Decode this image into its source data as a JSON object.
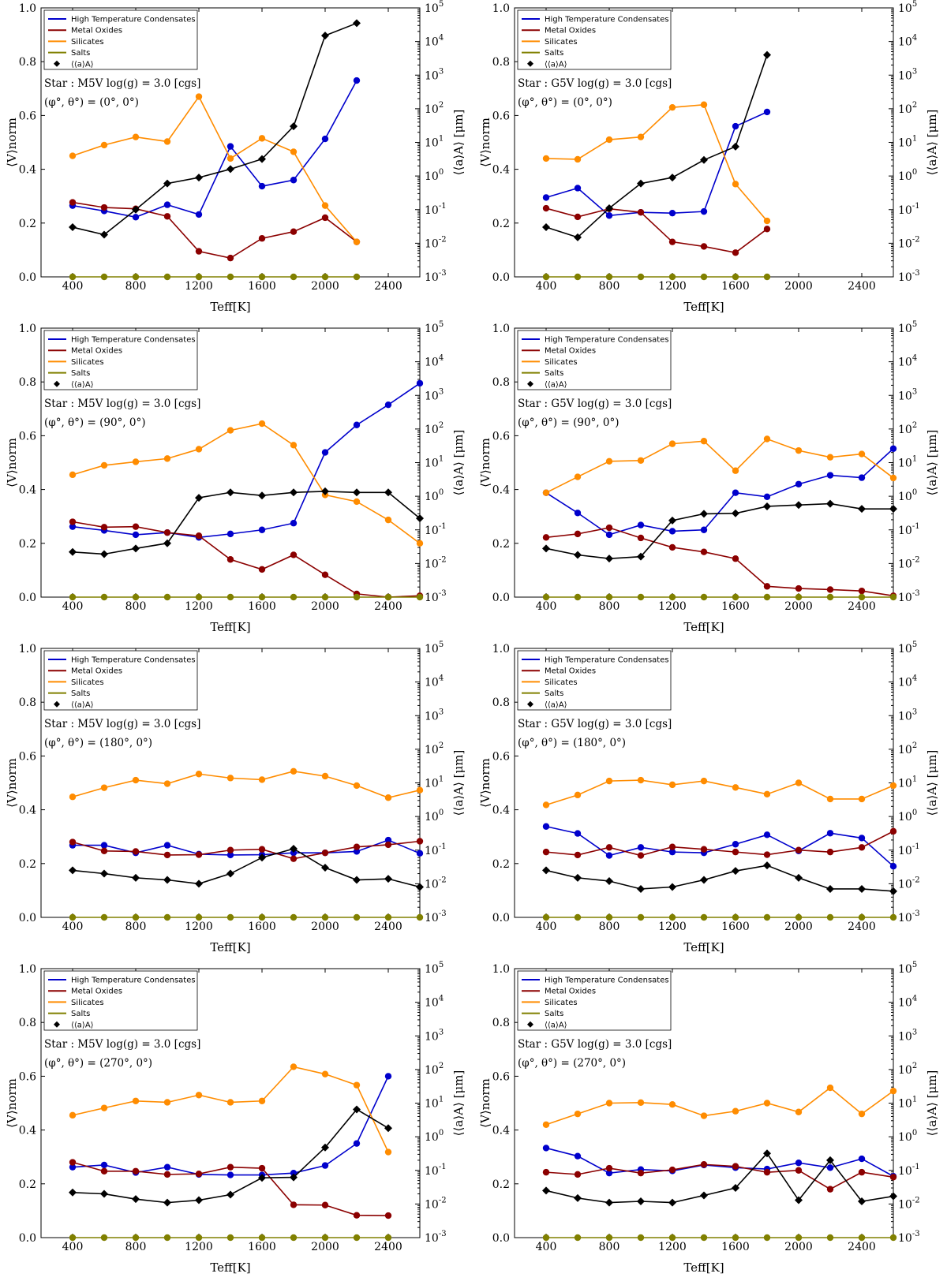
{
  "figure": {
    "colors": {
      "htc": "#0000cc",
      "metal_oxides": "#8b0000",
      "silicates": "#ff8c00",
      "salts": "#808000",
      "grain_size": "#000000"
    },
    "series_names": [
      "High Temperature Condensates",
      "Metal Oxides",
      "Silicates",
      "Salts"
    ],
    "grain_size_label": "⟨⟨a⟩A⟩",
    "xlabel": "Teff[K]",
    "ylabel_left": "⟨V⟩norm",
    "ylabel_right": "⟨⟨a⟩A⟩ [μm]"
  },
  "chart_data": [
    {
      "type": "line",
      "star": "Star : M5V   log(g) = 3.0 [cgs]",
      "angles": "(φ°, θ°) = (0°, 0°)",
      "xlim": [
        200,
        2600
      ],
      "xticks": [
        400,
        800,
        1200,
        1600,
        2000,
        2400
      ],
      "ylim": [
        0,
        1.0
      ],
      "yticks": [
        "0.0",
        "0.2",
        "0.4",
        "0.6",
        "0.8",
        "1.0"
      ],
      "y2lim_log10": [
        -3,
        5
      ],
      "y2ticks": [
        "10-3",
        "10-2",
        "10-1",
        "100",
        "101",
        "102",
        "103",
        "104",
        "105"
      ],
      "x": [
        400,
        600,
        800,
        1000,
        1200,
        1400,
        1600,
        1800,
        2000,
        2200
      ],
      "series": [
        {
          "name": "High Temperature Condensates",
          "values": [
            0.265,
            0.245,
            0.222,
            0.268,
            0.232,
            0.485,
            0.337,
            0.36,
            0.513,
            0.73
          ]
        },
        {
          "name": "Metal Oxides",
          "values": [
            0.277,
            0.258,
            0.253,
            0.225,
            0.095,
            0.07,
            0.143,
            0.168,
            0.22,
            0.13
          ]
        },
        {
          "name": "Silicates",
          "values": [
            0.45,
            0.49,
            0.52,
            0.503,
            0.67,
            0.44,
            0.515,
            0.465,
            0.265,
            0.13
          ]
        },
        {
          "name": "Salts",
          "values": [
            0,
            0,
            0,
            0,
            0,
            0,
            0,
            0,
            0,
            0
          ]
        }
      ],
      "grain_size_um": [
        0.03,
        0.018,
        0.1,
        0.6,
        0.9,
        1.6,
        3.2,
        30,
        15000,
        35000
      ]
    },
    {
      "type": "line",
      "star": "Star : G5V   log(g) = 3.0 [cgs]",
      "angles": "(φ°, θ°) = (0°, 0°)",
      "xlim": [
        200,
        2600
      ],
      "xticks": [
        400,
        800,
        1200,
        1600,
        2000,
        2400
      ],
      "ylim": [
        0,
        1.0
      ],
      "yticks": [
        "0.0",
        "0.2",
        "0.4",
        "0.6",
        "0.8",
        "1.0"
      ],
      "y2lim_log10": [
        -3,
        5
      ],
      "y2ticks": [
        "10-3",
        "10-2",
        "10-1",
        "100",
        "101",
        "102",
        "103",
        "104",
        "105"
      ],
      "x": [
        400,
        600,
        800,
        1000,
        1200,
        1400,
        1600,
        1800
      ],
      "series": [
        {
          "name": "High Temperature Condensates",
          "values": [
            0.295,
            0.33,
            0.228,
            0.24,
            0.237,
            0.243,
            0.56,
            0.613
          ]
        },
        {
          "name": "Metal Oxides",
          "values": [
            0.255,
            0.223,
            0.253,
            0.24,
            0.13,
            0.113,
            0.09,
            0.178
          ]
        },
        {
          "name": "Silicates",
          "values": [
            0.44,
            0.437,
            0.51,
            0.52,
            0.63,
            0.64,
            0.345,
            0.208
          ]
        },
        {
          "name": "Salts",
          "values": [
            0,
            0,
            0,
            0,
            0,
            0,
            0,
            0
          ]
        }
      ],
      "grain_size_um": [
        0.03,
        0.015,
        0.11,
        0.6,
        0.9,
        3.0,
        7.5,
        4000
      ]
    },
    {
      "type": "line",
      "star": "Star : M5V   log(g) = 3.0 [cgs]",
      "angles": "(φ°, θ°) = (90°, 0°)",
      "xlim": [
        200,
        2600
      ],
      "xticks": [
        400,
        800,
        1200,
        1600,
        2000,
        2400
      ],
      "ylim": [
        0,
        1.0
      ],
      "yticks": [
        "0.0",
        "0.2",
        "0.4",
        "0.6",
        "0.8",
        "1.0"
      ],
      "y2lim_log10": [
        -3,
        5
      ],
      "y2ticks": [
        "10-3",
        "10-2",
        "10-1",
        "100",
        "101",
        "102",
        "103",
        "104",
        "105"
      ],
      "x": [
        400,
        600,
        800,
        1000,
        1200,
        1400,
        1600,
        1800,
        2000,
        2200,
        2400,
        2600
      ],
      "series": [
        {
          "name": "High Temperature Condensates",
          "values": [
            0.262,
            0.248,
            0.232,
            0.24,
            0.222,
            0.235,
            0.25,
            0.275,
            0.538,
            0.64,
            0.715,
            0.795
          ]
        },
        {
          "name": "Metal Oxides",
          "values": [
            0.28,
            0.26,
            0.262,
            0.24,
            0.228,
            0.14,
            0.103,
            0.157,
            0.083,
            0.012,
            0.0,
            0.005
          ]
        },
        {
          "name": "Silicates",
          "values": [
            0.455,
            0.49,
            0.503,
            0.515,
            0.55,
            0.62,
            0.645,
            0.565,
            0.38,
            0.355,
            0.287,
            0.2
          ]
        },
        {
          "name": "Salts",
          "values": [
            0,
            0,
            0,
            0,
            0,
            0,
            0,
            0,
            0,
            0,
            0,
            0
          ]
        }
      ],
      "grain_size_um": [
        0.022,
        0.019,
        0.028,
        0.04,
        0.9,
        1.3,
        1.05,
        1.3,
        1.4,
        1.3,
        1.3,
        0.22
      ]
    },
    {
      "type": "line",
      "star": "Star : G5V   log(g) = 3.0 [cgs]",
      "angles": "(φ°, θ°) = (90°, 0°)",
      "xlim": [
        200,
        2600
      ],
      "xticks": [
        400,
        800,
        1200,
        1600,
        2000,
        2400
      ],
      "ylim": [
        0,
        1.0
      ],
      "yticks": [
        "0.0",
        "0.2",
        "0.4",
        "0.6",
        "0.8",
        "1.0"
      ],
      "y2lim_log10": [
        -3,
        5
      ],
      "y2ticks": [
        "10-3",
        "10-2",
        "10-1",
        "100",
        "101",
        "102",
        "103",
        "104",
        "105"
      ],
      "x": [
        400,
        600,
        800,
        1000,
        1200,
        1400,
        1600,
        1800,
        2000,
        2200,
        2400,
        2600
      ],
      "series": [
        {
          "name": "High Temperature Condensates",
          "values": [
            0.388,
            0.313,
            0.232,
            0.268,
            0.245,
            0.25,
            0.388,
            0.373,
            0.42,
            0.453,
            0.444,
            0.552
          ]
        },
        {
          "name": "Metal Oxides",
          "values": [
            0.222,
            0.235,
            0.258,
            0.22,
            0.185,
            0.168,
            0.143,
            0.04,
            0.032,
            0.028,
            0.023,
            0.005
          ]
        },
        {
          "name": "Silicates",
          "values": [
            0.388,
            0.447,
            0.505,
            0.508,
            0.57,
            0.58,
            0.47,
            0.588,
            0.545,
            0.52,
            0.532,
            0.443
          ]
        },
        {
          "name": "Salts",
          "values": [
            0,
            0,
            0,
            0,
            0,
            0,
            0,
            0,
            0,
            0,
            0,
            0
          ]
        }
      ],
      "grain_size_um": [
        0.028,
        0.018,
        0.014,
        0.016,
        0.19,
        0.3,
        0.31,
        0.5,
        0.55,
        0.6,
        0.42,
        0.42
      ]
    },
    {
      "type": "line",
      "star": "Star : M5V   log(g) = 3.0 [cgs]",
      "angles": "(φ°, θ°) = (180°, 0°)",
      "xlim": [
        200,
        2600
      ],
      "xticks": [
        400,
        800,
        1200,
        1600,
        2000,
        2400
      ],
      "ylim": [
        0,
        1.0
      ],
      "yticks": [
        "0.0",
        "0.2",
        "0.4",
        "0.6",
        "0.8",
        "1.0"
      ],
      "y2lim_log10": [
        -3,
        5
      ],
      "y2ticks": [
        "10-3",
        "10-2",
        "10-1",
        "100",
        "101",
        "102",
        "103",
        "104",
        "105"
      ],
      "x": [
        400,
        600,
        800,
        1000,
        1200,
        1400,
        1600,
        1800,
        2000,
        2200,
        2400,
        2600
      ],
      "series": [
        {
          "name": "High Temperature Condensates",
          "values": [
            0.268,
            0.268,
            0.24,
            0.268,
            0.235,
            0.232,
            0.233,
            0.24,
            0.24,
            0.245,
            0.287,
            0.238
          ]
        },
        {
          "name": "Metal Oxides",
          "values": [
            0.28,
            0.247,
            0.245,
            0.232,
            0.233,
            0.25,
            0.253,
            0.218,
            0.24,
            0.262,
            0.27,
            0.283
          ]
        },
        {
          "name": "Silicates",
          "values": [
            0.448,
            0.482,
            0.51,
            0.497,
            0.533,
            0.518,
            0.512,
            0.543,
            0.525,
            0.49,
            0.445,
            0.473
          ]
        },
        {
          "name": "Salts",
          "values": [
            0,
            0,
            0,
            0,
            0,
            0,
            0,
            0,
            0,
            0,
            0,
            0
          ]
        }
      ],
      "grain_size_um": [
        0.025,
        0.02,
        0.015,
        0.013,
        0.01,
        0.02,
        0.06,
        0.11,
        0.03,
        0.013,
        0.014,
        0.008
      ]
    },
    {
      "type": "line",
      "star": "Star : G5V   log(g) = 3.0 [cgs]",
      "angles": "(φ°, θ°) = (180°, 0°)",
      "xlim": [
        200,
        2600
      ],
      "xticks": [
        400,
        800,
        1200,
        1600,
        2000,
        2400
      ],
      "ylim": [
        0,
        1.0
      ],
      "yticks": [
        "0.0",
        "0.2",
        "0.4",
        "0.6",
        "0.8",
        "1.0"
      ],
      "y2lim_log10": [
        -3,
        5
      ],
      "y2ticks": [
        "10-3",
        "10-2",
        "10-1",
        "100",
        "101",
        "102",
        "103",
        "104",
        "105"
      ],
      "x": [
        400,
        600,
        800,
        1000,
        1200,
        1400,
        1600,
        1800,
        2000,
        2200,
        2400,
        2600
      ],
      "series": [
        {
          "name": "High Temperature Condensates",
          "values": [
            0.338,
            0.312,
            0.23,
            0.26,
            0.243,
            0.24,
            0.272,
            0.307,
            0.247,
            0.313,
            0.295,
            0.19
          ]
        },
        {
          "name": "Metal Oxides",
          "values": [
            0.243,
            0.232,
            0.26,
            0.23,
            0.262,
            0.253,
            0.243,
            0.233,
            0.25,
            0.243,
            0.26,
            0.32
          ]
        },
        {
          "name": "Silicates",
          "values": [
            0.418,
            0.455,
            0.507,
            0.51,
            0.493,
            0.507,
            0.483,
            0.458,
            0.5,
            0.44,
            0.44,
            0.49
          ]
        },
        {
          "name": "Salts",
          "values": [
            0,
            0,
            0,
            0,
            0,
            0,
            0,
            0,
            0,
            0,
            0,
            0
          ]
        }
      ],
      "grain_size_um": [
        0.025,
        0.015,
        0.012,
        0.007,
        0.008,
        0.013,
        0.024,
        0.035,
        0.015,
        0.007,
        0.007,
        0.006
      ]
    },
    {
      "type": "line",
      "star": "Star : M5V   log(g) = 3.0 [cgs]",
      "angles": "(φ°, θ°) = (270°, 0°)",
      "xlim": [
        200,
        2600
      ],
      "xticks": [
        400,
        800,
        1200,
        1600,
        2000,
        2400
      ],
      "ylim": [
        0,
        1.0
      ],
      "yticks": [
        "0.0",
        "0.2",
        "0.4",
        "0.6",
        "0.8",
        "1.0"
      ],
      "y2lim_log10": [
        -3,
        5
      ],
      "y2ticks": [
        "10-3",
        "10-2",
        "10-1",
        "100",
        "101",
        "102",
        "103",
        "104",
        "105"
      ],
      "x": [
        400,
        600,
        800,
        1000,
        1200,
        1400,
        1600,
        1800,
        2000,
        2200,
        2400
      ],
      "series": [
        {
          "name": "High Temperature Condensates",
          "values": [
            0.262,
            0.27,
            0.242,
            0.262,
            0.235,
            0.233,
            0.233,
            0.24,
            0.268,
            0.35,
            0.6
          ]
        },
        {
          "name": "Metal Oxides",
          "values": [
            0.28,
            0.247,
            0.247,
            0.235,
            0.237,
            0.262,
            0.258,
            0.122,
            0.121,
            0.083,
            0.082
          ]
        },
        {
          "name": "Silicates",
          "values": [
            0.455,
            0.482,
            0.508,
            0.503,
            0.53,
            0.503,
            0.508,
            0.635,
            0.608,
            0.567,
            0.318
          ]
        },
        {
          "name": "Salts",
          "values": [
            0,
            0,
            0,
            0,
            0,
            0,
            0,
            0,
            0,
            0,
            0
          ]
        }
      ],
      "grain_size_um": [
        0.022,
        0.02,
        0.014,
        0.011,
        0.013,
        0.019,
        0.06,
        0.062,
        0.48,
        6.5,
        1.8
      ]
    },
    {
      "type": "line",
      "star": "Star : G5V   log(g) = 3.0 [cgs]",
      "angles": "(φ°, θ°) = (270°, 0°)",
      "xlim": [
        200,
        2600
      ],
      "xticks": [
        400,
        800,
        1200,
        1600,
        2000,
        2400
      ],
      "ylim": [
        0,
        1.0
      ],
      "yticks": [
        "0.0",
        "0.2",
        "0.4",
        "0.6",
        "0.8",
        "1.0"
      ],
      "y2lim_log10": [
        -3,
        5
      ],
      "y2ticks": [
        "10-3",
        "10-2",
        "10-1",
        "100",
        "101",
        "102",
        "103",
        "104",
        "105"
      ],
      "x": [
        400,
        600,
        800,
        1000,
        1200,
        1400,
        1600,
        1800,
        2000,
        2200,
        2400,
        2600
      ],
      "series": [
        {
          "name": "High Temperature Condensates",
          "values": [
            0.333,
            0.303,
            0.24,
            0.253,
            0.248,
            0.27,
            0.26,
            0.255,
            0.278,
            0.26,
            0.293,
            0.228
          ]
        },
        {
          "name": "Metal Oxides",
          "values": [
            0.243,
            0.235,
            0.258,
            0.24,
            0.252,
            0.272,
            0.265,
            0.243,
            0.25,
            0.18,
            0.243,
            0.225
          ]
        },
        {
          "name": "Silicates",
          "values": [
            0.42,
            0.46,
            0.5,
            0.502,
            0.495,
            0.453,
            0.47,
            0.5,
            0.467,
            0.557,
            0.46,
            0.545
          ]
        },
        {
          "name": "Salts",
          "values": [
            0,
            0,
            0,
            0,
            0,
            0,
            0,
            0,
            0,
            0,
            0,
            0
          ]
        }
      ],
      "grain_size_um": [
        0.025,
        0.015,
        0.011,
        0.012,
        0.011,
        0.018,
        0.03,
        0.32,
        0.013,
        0.2,
        0.012,
        0.017
      ]
    }
  ]
}
